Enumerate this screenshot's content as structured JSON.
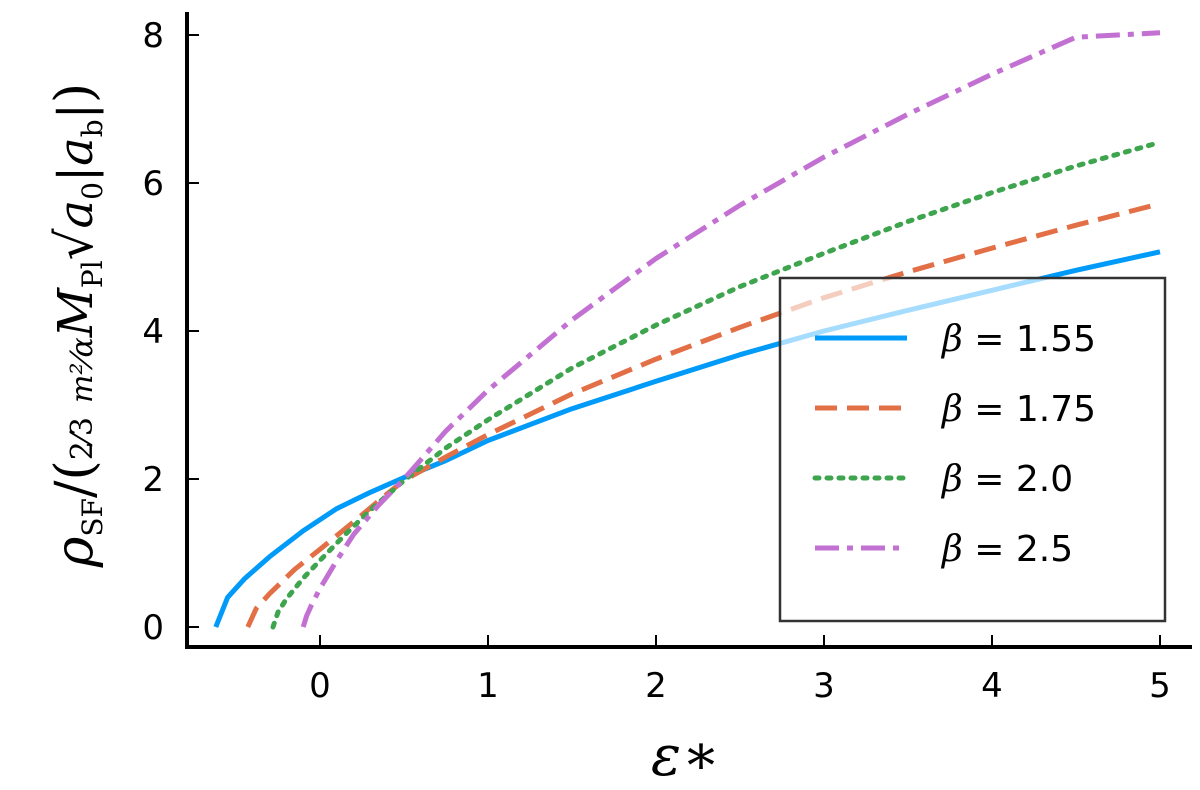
{
  "chart_data": {
    "type": "line",
    "title": "",
    "xlabel": "ε *",
    "ylabel": "ρSF/( 2/3 m²/α MPl √(a0|ab|) )",
    "ylabel_parts": {
      "rho": "ρ",
      "rho_sub": "SF",
      "slash_paren": "/(",
      "frac_num": "2",
      "frac_den": "3",
      "m2": "m²",
      "alpha": "α",
      "M": "M",
      "M_sub": "Pl",
      "a0": "a",
      "a0_sub": "0",
      "bar": "|",
      "ab": "a",
      "ab_sub": "b",
      "close": ")"
    },
    "xlim": [
      -0.8,
      5.2
    ],
    "ylim": [
      -0.25,
      8.3
    ],
    "xticks": [
      "0",
      "1",
      "2",
      "3",
      "4",
      "5"
    ],
    "yticks": [
      "0",
      "2",
      "4",
      "6",
      "8"
    ],
    "grid": false,
    "legend_position": "right",
    "series": [
      {
        "name": "β = 1.55",
        "beta": "1.55",
        "color": "#009af9",
        "style": "solid",
        "x": [
          -0.62,
          -0.55,
          -0.45,
          -0.3,
          -0.1,
          0.1,
          0.3,
          0.5,
          0.75,
          1.0,
          1.5,
          2.0,
          2.5,
          3.0,
          3.5,
          4.0,
          4.5,
          5.0
        ],
        "y": [
          0,
          0.4,
          0.65,
          0.95,
          1.3,
          1.6,
          1.82,
          2.02,
          2.25,
          2.52,
          2.95,
          3.32,
          3.68,
          4.0,
          4.28,
          4.55,
          4.82,
          5.07
        ]
      },
      {
        "name": "β = 1.75",
        "beta": "1.75",
        "color": "#e26f46",
        "style": "dashed",
        "x": [
          -0.43,
          -0.38,
          -0.3,
          -0.15,
          0.0,
          0.2,
          0.4,
          0.5,
          0.75,
          1.0,
          1.5,
          2.0,
          2.5,
          3.0,
          3.5,
          4.0,
          4.5,
          5.0
        ],
        "y": [
          0,
          0.25,
          0.45,
          0.78,
          1.05,
          1.42,
          1.8,
          1.98,
          2.3,
          2.6,
          3.15,
          3.62,
          4.05,
          4.45,
          4.8,
          5.12,
          5.43,
          5.72
        ]
      },
      {
        "name": "β = 2.0",
        "beta": "2.0",
        "color": "#3ea44e",
        "style": "dotted",
        "x": [
          -0.28,
          -0.25,
          -0.2,
          -0.1,
          0.0,
          0.15,
          0.3,
          0.5,
          0.75,
          1.0,
          1.5,
          2.0,
          2.5,
          3.0,
          3.5,
          4.0,
          4.5,
          5.0
        ],
        "y": [
          0,
          0.2,
          0.38,
          0.66,
          0.9,
          1.25,
          1.58,
          1.98,
          2.42,
          2.8,
          3.5,
          4.08,
          4.6,
          5.05,
          5.48,
          5.87,
          6.23,
          6.55
        ]
      },
      {
        "name": "β = 2.5",
        "beta": "2.5",
        "color": "#c271d2",
        "style": "dashdot",
        "x": [
          -0.1,
          -0.08,
          -0.05,
          0.0,
          0.1,
          0.2,
          0.35,
          0.5,
          0.75,
          1.0,
          1.5,
          2.0,
          2.5,
          3.0,
          3.5,
          4.0,
          4.5,
          5.0
        ],
        "y": [
          0,
          0.15,
          0.3,
          0.52,
          0.9,
          1.25,
          1.65,
          2.0,
          2.65,
          3.2,
          4.15,
          4.98,
          5.7,
          6.35,
          6.93,
          7.47,
          7.97,
          8.03
        ]
      }
    ]
  },
  "colors": {
    "axis": "#000000",
    "legend_border": "#333333"
  }
}
